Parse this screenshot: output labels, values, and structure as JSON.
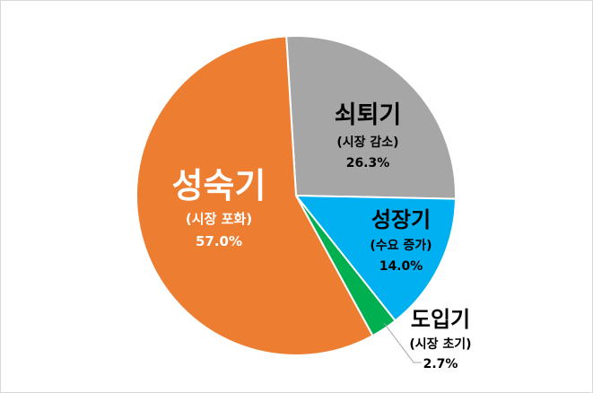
{
  "chart_data": {
    "type": "pie",
    "start_angle_deg": -3.5,
    "direction": "clockwise",
    "slices": [
      {
        "key": "decline",
        "name": "쇠퇴기",
        "sub": "(시장 감소)",
        "pct_label": "26.3%",
        "value": 26.3,
        "color": "#a6a6a6"
      },
      {
        "key": "growth",
        "name": "성장기",
        "sub": "(수요 증가)",
        "pct_label": "14.0%",
        "value": 14.0,
        "color": "#00b0f0"
      },
      {
        "key": "intro",
        "name": "도입기",
        "sub": "(시장 초기)",
        "pct_label": "2.7%",
        "value": 2.7,
        "color": "#00b050"
      },
      {
        "key": "mature",
        "name": "성숙기",
        "sub": "(시장 포화)",
        "pct_label": "57.0%",
        "value": 57.0,
        "color": "#ed7d31"
      }
    ],
    "title": "",
    "legend": "none",
    "label_colors": {
      "decline": "#000000",
      "growth": "#000000",
      "intro": "#000000",
      "mature": "#ffffff"
    }
  }
}
